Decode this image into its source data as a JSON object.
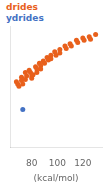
{
  "chart_data": {
    "type": "scatter",
    "xlabel": "(kcal/mol)",
    "xlim": [
      63,
      135
    ],
    "ylim": [
      -5,
      100
    ],
    "xticks": [
      80,
      100,
      120
    ],
    "tick_labels": "x",
    "grid": false,
    "series": [
      {
        "name": "drides",
        "color": "#E8601C",
        "x": [
          68,
          69,
          70,
          72,
          72,
          73,
          75,
          76,
          75,
          78,
          79,
          80,
          80,
          81,
          83,
          84,
          84,
          86,
          87,
          87,
          89,
          90,
          92,
          93,
          95,
          95,
          98,
          99,
          102,
          102,
          106,
          107,
          110,
          111,
          115,
          116,
          120,
          121,
          125,
          126,
          130
        ],
        "values": [
          52,
          50,
          48,
          56,
          53,
          50,
          60,
          57,
          54,
          62,
          60,
          57,
          55,
          58,
          65,
          63,
          60,
          68,
          66,
          63,
          70,
          68,
          73,
          71,
          75,
          72,
          78,
          75,
          80,
          77,
          83,
          81,
          85,
          83,
          88,
          86,
          90,
          88,
          91,
          89,
          93
        ]
      },
      {
        "name": "ydrides",
        "color": "#4472C4",
        "x": [
          73
        ],
        "values": [
          28
        ]
      }
    ]
  }
}
